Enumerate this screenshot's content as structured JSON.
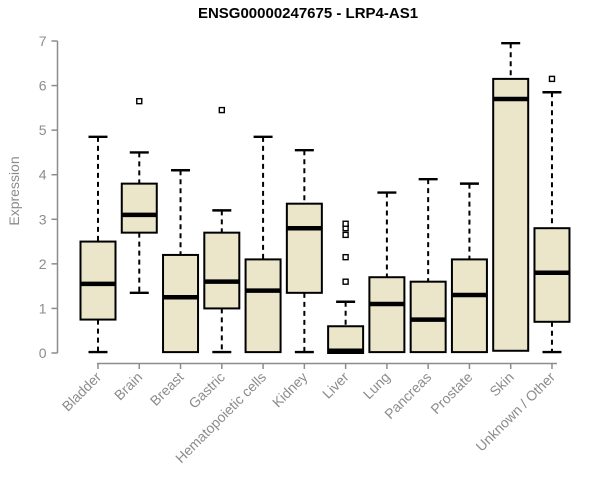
{
  "title": "ENSG00000247675 - LRP4-AS1",
  "chart_data": {
    "type": "boxplot",
    "title": "ENSG00000247675 - LRP4-AS1",
    "xlabel": "",
    "ylabel": "Expression",
    "ylim": [
      0,
      7
    ],
    "yticks": [
      0,
      1,
      2,
      3,
      4,
      5,
      6,
      7
    ],
    "grid": false,
    "legend_position": "none",
    "categories": [
      "Bladder",
      "Brain",
      "Breast",
      "Gastric",
      "Hematopoietic cells",
      "Kidney",
      "Liver",
      "Lung",
      "Pancreas",
      "Prostate",
      "Skin",
      "Unknown / Other"
    ],
    "series": [
      {
        "category": "Bladder",
        "whisker_low": 0.02,
        "q1": 0.75,
        "median": 1.55,
        "q3": 2.5,
        "whisker_high": 4.85,
        "outliers": []
      },
      {
        "category": "Brain",
        "whisker_low": 1.35,
        "q1": 2.7,
        "median": 3.1,
        "q3": 3.8,
        "whisker_high": 4.5,
        "outliers": [
          5.65
        ]
      },
      {
        "category": "Breast",
        "whisker_low": 0.02,
        "q1": 0.02,
        "median": 1.25,
        "q3": 2.2,
        "whisker_high": 4.1,
        "outliers": []
      },
      {
        "category": "Gastric",
        "whisker_low": 0.02,
        "q1": 1.0,
        "median": 1.6,
        "q3": 2.7,
        "whisker_high": 3.2,
        "outliers": [
          5.45
        ]
      },
      {
        "category": "Hematopoietic cells",
        "whisker_low": 0.02,
        "q1": 0.02,
        "median": 1.4,
        "q3": 2.1,
        "whisker_high": 4.85,
        "outliers": []
      },
      {
        "category": "Kidney",
        "whisker_low": 0.02,
        "q1": 1.35,
        "median": 2.8,
        "q3": 3.35,
        "whisker_high": 4.55,
        "outliers": []
      },
      {
        "category": "Liver",
        "whisker_low": 0.0,
        "q1": 0.0,
        "median": 0.05,
        "q3": 0.6,
        "whisker_high": 1.15,
        "outliers": [
          1.6,
          2.15,
          2.65,
          2.8,
          2.9
        ]
      },
      {
        "category": "Lung",
        "whisker_low": 0.02,
        "q1": 0.02,
        "median": 1.1,
        "q3": 1.7,
        "whisker_high": 3.6,
        "outliers": []
      },
      {
        "category": "Pancreas",
        "whisker_low": 0.02,
        "q1": 0.02,
        "median": 0.75,
        "q3": 1.6,
        "whisker_high": 3.9,
        "outliers": []
      },
      {
        "category": "Prostate",
        "whisker_low": 0.02,
        "q1": 0.02,
        "median": 1.3,
        "q3": 2.1,
        "whisker_high": 3.8,
        "outliers": []
      },
      {
        "category": "Skin",
        "whisker_low": 0.05,
        "q1": 0.05,
        "median": 5.7,
        "q3": 6.15,
        "whisker_high": 6.95,
        "outliers": []
      },
      {
        "category": "Unknown / Other",
        "whisker_low": 0.02,
        "q1": 0.7,
        "median": 1.8,
        "q3": 2.8,
        "whisker_high": 5.85,
        "outliers": [
          6.15
        ]
      }
    ],
    "colors": {
      "box_fill": "#EBE6C9",
      "box_border": "#000000",
      "median": "#000000",
      "whisker": "#000000",
      "outlier_stroke": "#000000",
      "outlier_fill": "#FFFFFF",
      "axis": "#8C8C8C",
      "tick_label": "#8C8C8C",
      "title": "#000000",
      "background": "#FFFFFF"
    }
  }
}
